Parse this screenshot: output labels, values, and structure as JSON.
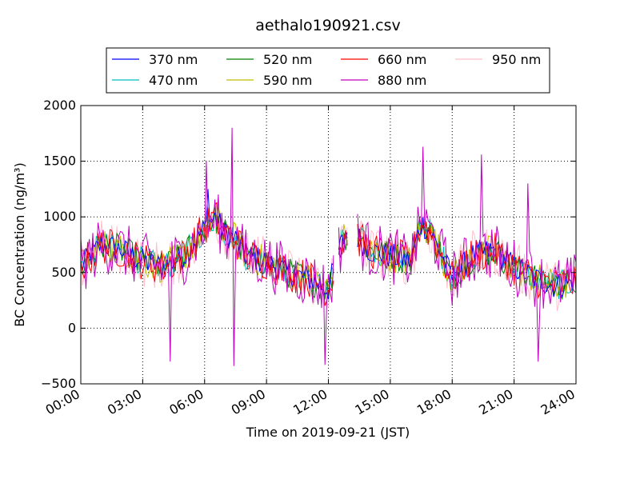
{
  "chart_data": {
    "type": "line",
    "title": "aethalo190921.csv",
    "xlabel": "Time on 2019-09-21 (JST)",
    "ylabel": "BC Concentration (ng/m³)",
    "ylim": [
      -500,
      2000
    ],
    "xlim_hours": [
      0,
      24
    ],
    "yticks": [
      -500,
      0,
      500,
      1000,
      1500,
      2000
    ],
    "ytick_labels": [
      "−500",
      "0",
      "500",
      "1000",
      "1500",
      "2000"
    ],
    "xticks_hours": [
      0,
      3,
      6,
      9,
      12,
      15,
      18,
      21,
      24
    ],
    "xtick_labels": [
      "00:00",
      "03:00",
      "06:00",
      "09:00",
      "12:00",
      "15:00",
      "18:00",
      "21:00",
      "24:00"
    ],
    "grid": true,
    "legend_position": "top-center",
    "sample_step_minutes": 5,
    "series": [
      {
        "name": "370 nm",
        "color": "#0000ff"
      },
      {
        "name": "470 nm",
        "color": "#00bfbf"
      },
      {
        "name": "520 nm",
        "color": "#008000"
      },
      {
        "name": "590 nm",
        "color": "#bfbf00"
      },
      {
        "name": "660 nm",
        "color": "#ff0000"
      },
      {
        "name": "880 nm",
        "color": "#bf00bf"
      },
      {
        "name": "950 nm",
        "color": "#ffc0cb"
      }
    ],
    "baseline_profile": {
      "hours": [
        0,
        1,
        2,
        3,
        4,
        5,
        6,
        6.5,
        7,
        7.5,
        8,
        9,
        10,
        11,
        12,
        12.5,
        13,
        14,
        15,
        16,
        16.5,
        17,
        17.5,
        18,
        19,
        20,
        21,
        22,
        23,
        24
      ],
      "values": [
        550,
        750,
        700,
        600,
        550,
        650,
        900,
        1000,
        850,
        800,
        650,
        600,
        500,
        450,
        350,
        700,
        900,
        700,
        650,
        600,
        950,
        850,
        650,
        450,
        650,
        700,
        550,
        450,
        380,
        420
      ]
    },
    "gaps_hours": [
      [
        12.3,
        12.5
      ],
      [
        13.0,
        13.4
      ]
    ],
    "notable_peaks": [
      {
        "series": "880 nm",
        "hour": 7.3,
        "value": 1800
      },
      {
        "series": "880 nm",
        "hour": 16.6,
        "value": 1630
      },
      {
        "series": "880 nm",
        "hour": 19.4,
        "value": 1560
      },
      {
        "series": "880 nm",
        "hour": 6.1,
        "value": 1500
      },
      {
        "series": "880 nm",
        "hour": 21.7,
        "value": 1300
      },
      {
        "series": "370 nm",
        "hour": 6.2,
        "value": 1250
      },
      {
        "series": "880 nm",
        "hour": 11.8,
        "value": -330
      },
      {
        "series": "880 nm",
        "hour": 7.4,
        "value": -340
      },
      {
        "series": "880 nm",
        "hour": 4.3,
        "value": -300
      },
      {
        "series": "880 nm",
        "hour": 22.2,
        "value": -300
      }
    ],
    "series_noise": [
      120,
      130,
      140,
      150,
      170,
      260,
      230
    ]
  }
}
